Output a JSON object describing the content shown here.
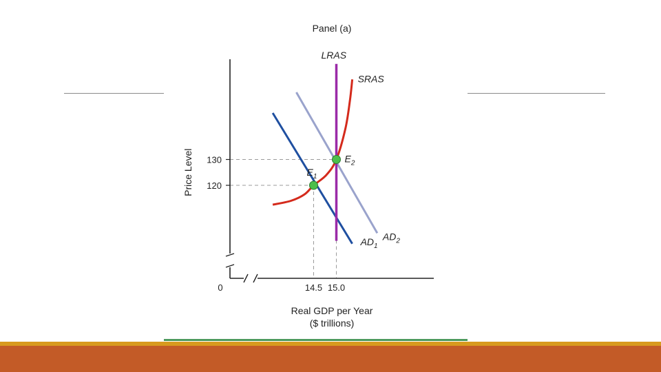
{
  "colors": {
    "slide_rule": "#8a8a8a",
    "footer_gold": "#d89a1e",
    "footer_band": "#c35b27",
    "figure_underline": "#4d9a5e",
    "ad1": "#1f4fa0",
    "ad2": "#9aa3cc",
    "sras": "#d42a1c",
    "lras": "#9b2aa8",
    "equilibrium": "#4cbf4c",
    "guide": "#9a9a9a"
  },
  "chart_data": {
    "type": "line",
    "title": "Panel (a)",
    "xlabel": "Real GDP per Year",
    "xlabel_unit": "($ trillions)",
    "ylabel": "Price Level",
    "x_origin_label": "0",
    "x_ticks": [
      14.5,
      15.0
    ],
    "x_tick_labels": [
      "14.5",
      "15.0"
    ],
    "y_ticks": [
      120,
      130
    ],
    "y_tick_labels": [
      "120",
      "130"
    ],
    "axis_breaks": true,
    "series": [
      {
        "id": "ad1",
        "label": "AD",
        "label_sub": "1",
        "kind": "line",
        "points": [
          [
            13.6,
            148.0
          ],
          [
            15.35,
            97.4
          ]
        ]
      },
      {
        "id": "ad2",
        "label": "AD",
        "label_sub": "2",
        "kind": "line",
        "points": [
          [
            14.12,
            156.0
          ],
          [
            15.9,
            101.5
          ]
        ]
      },
      {
        "id": "sras",
        "label": "SRAS",
        "label_sub": "",
        "kind": "curve",
        "points": [
          [
            13.6,
            112.5
          ],
          [
            14.0,
            114.0
          ],
          [
            14.3,
            116.5
          ],
          [
            14.5,
            120.0
          ],
          [
            14.78,
            124.0
          ],
          [
            15.0,
            130.0
          ],
          [
            15.2,
            142.0
          ],
          [
            15.3,
            153.0
          ],
          [
            15.35,
            161.0
          ]
        ]
      },
      {
        "id": "lras",
        "label": "LRAS",
        "label_sub": "",
        "kind": "vertical",
        "x": 15.0,
        "y_range": [
          98.5,
          167.0
        ]
      }
    ],
    "points": [
      {
        "id": "e1",
        "label": "E",
        "label_sub": "1",
        "x": 14.5,
        "y": 120.0
      },
      {
        "id": "e2",
        "label": "E",
        "label_sub": "2",
        "x": 15.0,
        "y": 130.0
      }
    ],
    "grid": false,
    "legend": "none"
  }
}
